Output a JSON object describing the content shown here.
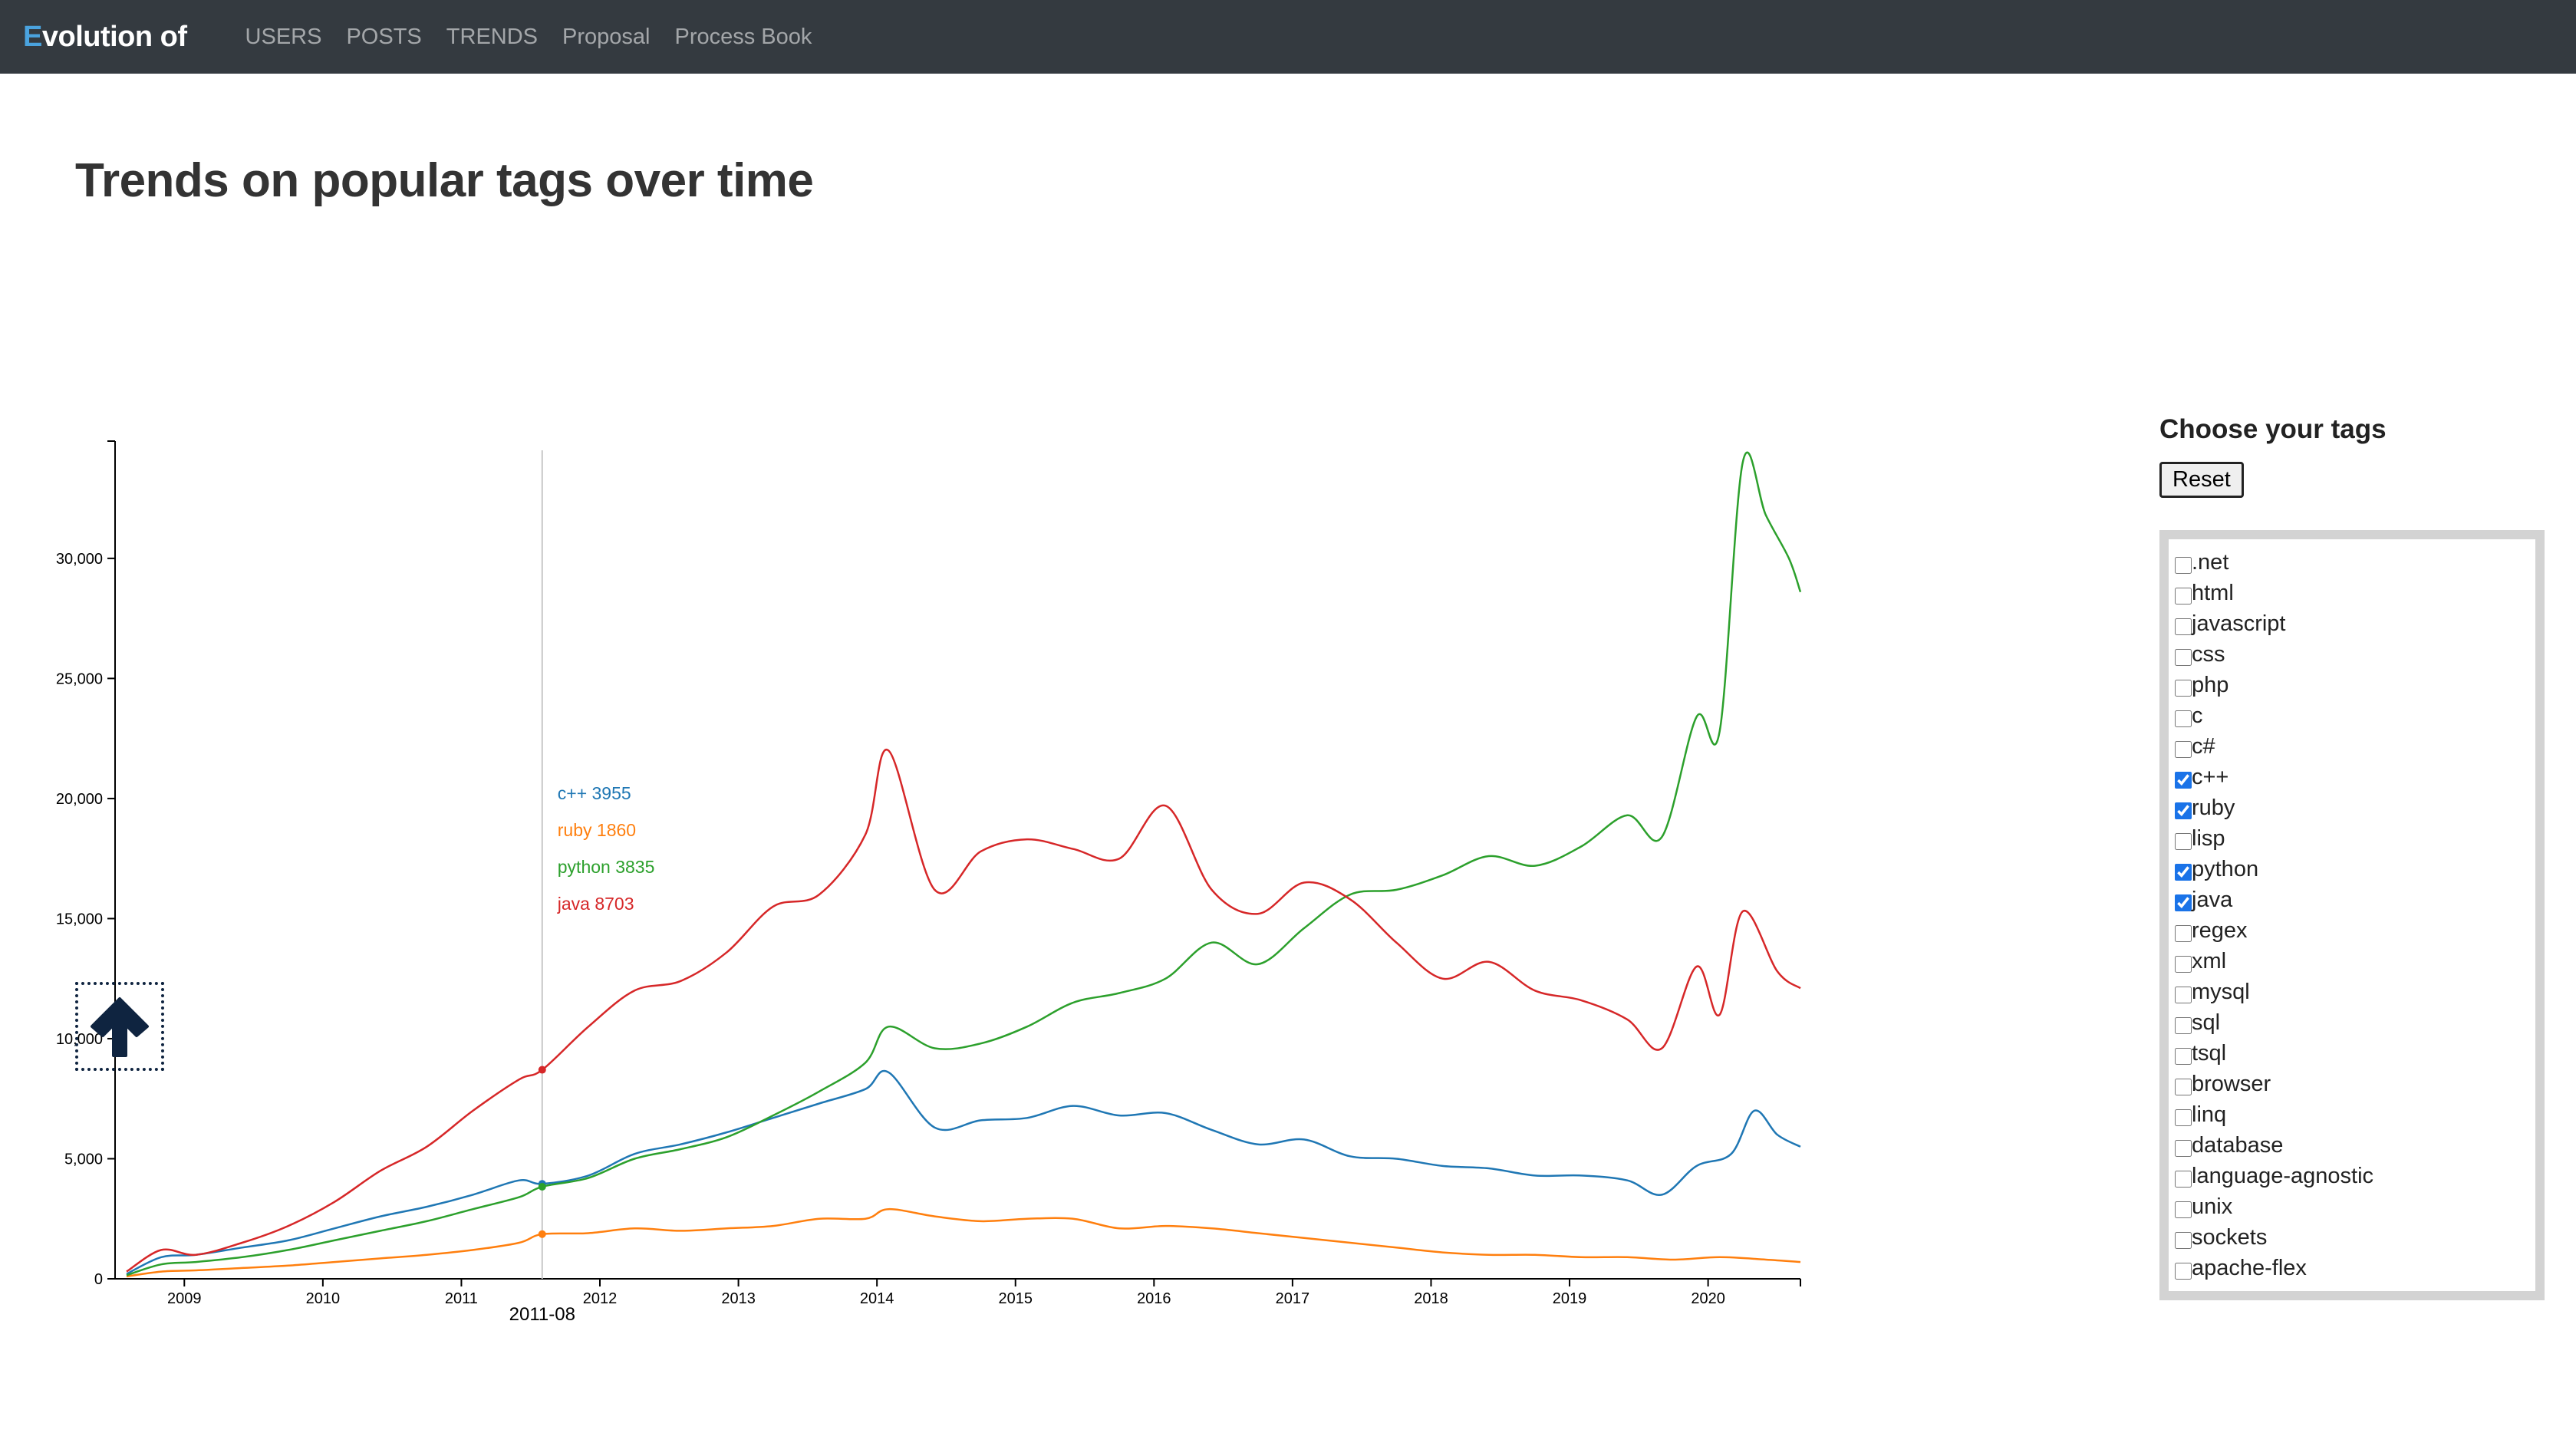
{
  "navbar": {
    "brand_first": "E",
    "brand_rest": "volution of",
    "items": [
      "USERS",
      "POSTS",
      "TRENDS",
      "Proposal",
      "Process Book"
    ]
  },
  "page_title": "Trends on popular tags over time",
  "sidebar": {
    "title": "Choose your tags",
    "reset_label": "Reset",
    "tags": [
      {
        "label": ".net",
        "checked": false
      },
      {
        "label": "html",
        "checked": false
      },
      {
        "label": "javascript",
        "checked": false
      },
      {
        "label": "css",
        "checked": false
      },
      {
        "label": "php",
        "checked": false
      },
      {
        "label": "c",
        "checked": false
      },
      {
        "label": "c#",
        "checked": false
      },
      {
        "label": "c++",
        "checked": true
      },
      {
        "label": "ruby",
        "checked": true
      },
      {
        "label": "lisp",
        "checked": false
      },
      {
        "label": "python",
        "checked": true
      },
      {
        "label": "java",
        "checked": true
      },
      {
        "label": "regex",
        "checked": false
      },
      {
        "label": "xml",
        "checked": false
      },
      {
        "label": "mysql",
        "checked": false
      },
      {
        "label": "sql",
        "checked": false
      },
      {
        "label": "tsql",
        "checked": false
      },
      {
        "label": "browser",
        "checked": false
      },
      {
        "label": "linq",
        "checked": false
      },
      {
        "label": "database",
        "checked": false
      },
      {
        "label": "language-agnostic",
        "checked": false
      },
      {
        "label": "unix",
        "checked": false
      },
      {
        "label": "sockets",
        "checked": false
      },
      {
        "label": "apache-flex",
        "checked": false
      }
    ]
  },
  "scroll_top_icon": "arrow-up-icon",
  "chart_data": {
    "type": "line",
    "title": "",
    "xlabel": "",
    "ylabel": "",
    "x_range": [
      "2008-07",
      "2020-09"
    ],
    "x_ticks": [
      "2009",
      "2010",
      "2011",
      "2012",
      "2013",
      "2014",
      "2015",
      "2016",
      "2017",
      "2018",
      "2019",
      "2020"
    ],
    "ylim": [
      0,
      34500
    ],
    "y_ticks": [
      0,
      5000,
      10000,
      15000,
      20000,
      25000,
      30000
    ],
    "y_tick_labels": [
      "0",
      "5,000",
      "10,000",
      "15,000",
      "20,000",
      "25,000",
      "30,000"
    ],
    "grid": false,
    "hover": {
      "date": "2011-08",
      "labels": [
        "c++ 3955",
        "ruby 1860",
        "python 3835",
        "java 8703"
      ]
    },
    "series": [
      {
        "name": "c++",
        "color": "#1f77b4",
        "points": [
          [
            "2008-08",
            200
          ],
          [
            "2008-11",
            900
          ],
          [
            "2009-02",
            1000
          ],
          [
            "2009-06",
            1300
          ],
          [
            "2009-10",
            1600
          ],
          [
            "2010-02",
            2100
          ],
          [
            "2010-06",
            2600
          ],
          [
            "2010-10",
            3000
          ],
          [
            "2011-02",
            3500
          ],
          [
            "2011-06",
            4100
          ],
          [
            "2011-08",
            3955
          ],
          [
            "2011-12",
            4300
          ],
          [
            "2012-04",
            5200
          ],
          [
            "2012-08",
            5600
          ],
          [
            "2012-12",
            6100
          ],
          [
            "2013-04",
            6700
          ],
          [
            "2013-08",
            7300
          ],
          [
            "2013-12",
            7900
          ],
          [
            "2014-02",
            8600
          ],
          [
            "2014-06",
            6300
          ],
          [
            "2014-10",
            6600
          ],
          [
            "2015-02",
            6700
          ],
          [
            "2015-06",
            7200
          ],
          [
            "2015-10",
            6800
          ],
          [
            "2016-02",
            6900
          ],
          [
            "2016-06",
            6200
          ],
          [
            "2016-10",
            5600
          ],
          [
            "2017-02",
            5800
          ],
          [
            "2017-06",
            5100
          ],
          [
            "2017-10",
            5000
          ],
          [
            "2018-02",
            4700
          ],
          [
            "2018-06",
            4600
          ],
          [
            "2018-10",
            4300
          ],
          [
            "2019-02",
            4300
          ],
          [
            "2019-06",
            4100
          ],
          [
            "2019-09",
            3500
          ],
          [
            "2019-12",
            4700
          ],
          [
            "2020-03",
            5200
          ],
          [
            "2020-05",
            7000
          ],
          [
            "2020-07",
            6000
          ],
          [
            "2020-09",
            5500
          ]
        ]
      },
      {
        "name": "ruby",
        "color": "#ff7f0e",
        "points": [
          [
            "2008-08",
            100
          ],
          [
            "2008-11",
            300
          ],
          [
            "2009-02",
            350
          ],
          [
            "2009-06",
            450
          ],
          [
            "2009-10",
            550
          ],
          [
            "2010-02",
            700
          ],
          [
            "2010-06",
            850
          ],
          [
            "2010-10",
            1000
          ],
          [
            "2011-02",
            1200
          ],
          [
            "2011-06",
            1500
          ],
          [
            "2011-08",
            1860
          ],
          [
            "2011-12",
            1900
          ],
          [
            "2012-04",
            2100
          ],
          [
            "2012-08",
            2000
          ],
          [
            "2012-12",
            2100
          ],
          [
            "2013-04",
            2200
          ],
          [
            "2013-08",
            2500
          ],
          [
            "2013-12",
            2500
          ],
          [
            "2014-02",
            2900
          ],
          [
            "2014-06",
            2600
          ],
          [
            "2014-10",
            2400
          ],
          [
            "2015-02",
            2500
          ],
          [
            "2015-06",
            2500
          ],
          [
            "2015-10",
            2100
          ],
          [
            "2016-02",
            2200
          ],
          [
            "2016-06",
            2100
          ],
          [
            "2016-10",
            1900
          ],
          [
            "2017-02",
            1700
          ],
          [
            "2017-06",
            1500
          ],
          [
            "2017-10",
            1300
          ],
          [
            "2018-02",
            1100
          ],
          [
            "2018-06",
            1000
          ],
          [
            "2018-10",
            1000
          ],
          [
            "2019-02",
            900
          ],
          [
            "2019-06",
            900
          ],
          [
            "2019-10",
            800
          ],
          [
            "2020-02",
            900
          ],
          [
            "2020-06",
            800
          ],
          [
            "2020-09",
            700
          ]
        ]
      },
      {
        "name": "python",
        "color": "#2ca02c",
        "points": [
          [
            "2008-08",
            150
          ],
          [
            "2008-11",
            600
          ],
          [
            "2009-02",
            700
          ],
          [
            "2009-06",
            900
          ],
          [
            "2009-10",
            1200
          ],
          [
            "2010-02",
            1600
          ],
          [
            "2010-06",
            2000
          ],
          [
            "2010-10",
            2400
          ],
          [
            "2011-02",
            2900
          ],
          [
            "2011-06",
            3400
          ],
          [
            "2011-08",
            3835
          ],
          [
            "2011-12",
            4200
          ],
          [
            "2012-04",
            5000
          ],
          [
            "2012-08",
            5400
          ],
          [
            "2012-12",
            5900
          ],
          [
            "2013-04",
            6800
          ],
          [
            "2013-08",
            7800
          ],
          [
            "2013-12",
            9000
          ],
          [
            "2014-02",
            10500
          ],
          [
            "2014-06",
            9600
          ],
          [
            "2014-10",
            9800
          ],
          [
            "2015-02",
            10500
          ],
          [
            "2015-06",
            11500
          ],
          [
            "2015-10",
            11900
          ],
          [
            "2016-02",
            12500
          ],
          [
            "2016-06",
            14000
          ],
          [
            "2016-10",
            13100
          ],
          [
            "2017-02",
            14600
          ],
          [
            "2017-06",
            16000
          ],
          [
            "2017-10",
            16200
          ],
          [
            "2018-02",
            16800
          ],
          [
            "2018-06",
            17600
          ],
          [
            "2018-10",
            17200
          ],
          [
            "2019-02",
            18000
          ],
          [
            "2019-06",
            19300
          ],
          [
            "2019-09",
            18400
          ],
          [
            "2019-12",
            23400
          ],
          [
            "2020-02",
            22800
          ],
          [
            "2020-04",
            34000
          ],
          [
            "2020-06",
            31800
          ],
          [
            "2020-08",
            30000
          ],
          [
            "2020-09",
            28600
          ]
        ]
      },
      {
        "name": "java",
        "color": "#d62728",
        "points": [
          [
            "2008-08",
            300
          ],
          [
            "2008-11",
            1200
          ],
          [
            "2009-02",
            1000
          ],
          [
            "2009-06",
            1500
          ],
          [
            "2009-10",
            2200
          ],
          [
            "2010-02",
            3200
          ],
          [
            "2010-06",
            4500
          ],
          [
            "2010-10",
            5500
          ],
          [
            "2011-02",
            7000
          ],
          [
            "2011-06",
            8300
          ],
          [
            "2011-08",
            8703
          ],
          [
            "2011-12",
            10500
          ],
          [
            "2012-04",
            12000
          ],
          [
            "2012-08",
            12400
          ],
          [
            "2012-12",
            13600
          ],
          [
            "2013-04",
            15500
          ],
          [
            "2013-08",
            16000
          ],
          [
            "2013-12",
            18500
          ],
          [
            "2014-02",
            22000
          ],
          [
            "2014-06",
            16200
          ],
          [
            "2014-10",
            17800
          ],
          [
            "2015-02",
            18300
          ],
          [
            "2015-06",
            17900
          ],
          [
            "2015-10",
            17500
          ],
          [
            "2016-02",
            19700
          ],
          [
            "2016-06",
            16200
          ],
          [
            "2016-10",
            15200
          ],
          [
            "2017-02",
            16500
          ],
          [
            "2017-06",
            15800
          ],
          [
            "2017-10",
            14000
          ],
          [
            "2018-02",
            12500
          ],
          [
            "2018-06",
            13200
          ],
          [
            "2018-10",
            12000
          ],
          [
            "2019-02",
            11600
          ],
          [
            "2019-06",
            10800
          ],
          [
            "2019-09",
            9600
          ],
          [
            "2019-12",
            13000
          ],
          [
            "2020-02",
            11000
          ],
          [
            "2020-04",
            15300
          ],
          [
            "2020-07",
            12800
          ],
          [
            "2020-09",
            12100
          ]
        ]
      }
    ]
  }
}
